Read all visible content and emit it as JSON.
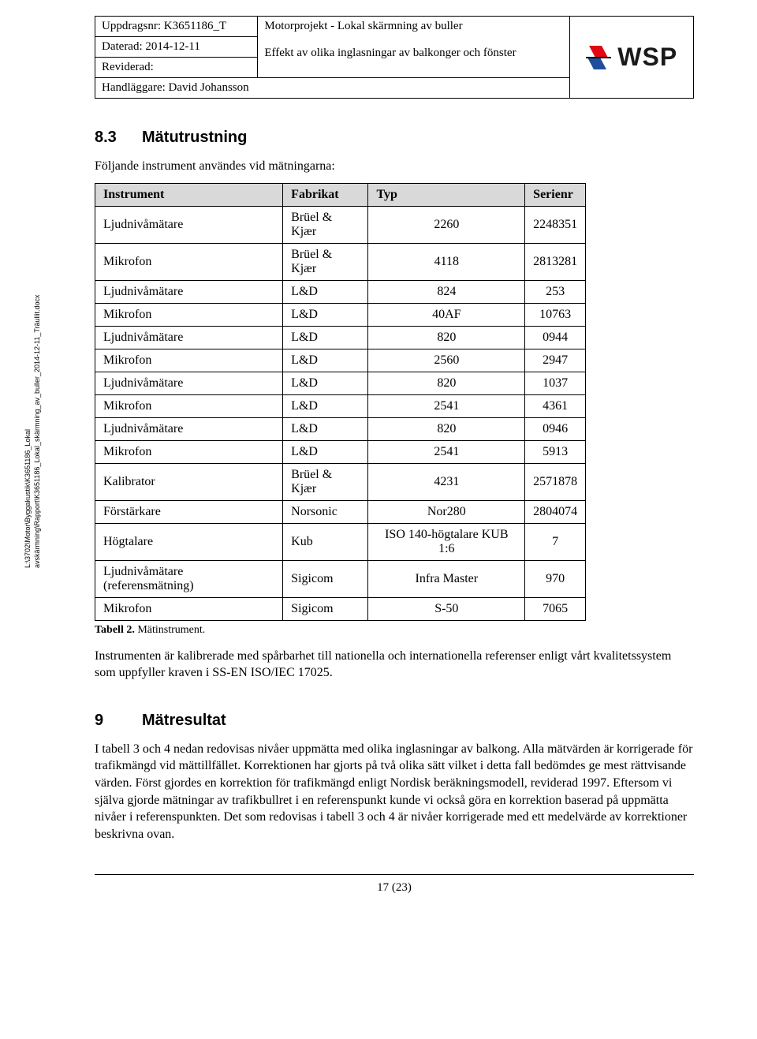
{
  "header": {
    "uppdragsnr_label": "Uppdragsnr: K3651186_T",
    "daterad_label": "Daterad: 2014-12-11",
    "reviderad_label": "Reviderad:",
    "handlaggare_label": "Handläggare: David Johansson",
    "title_line1": "Motorprojekt - Lokal skärmning av buller",
    "title_line2": "Effekt av olika inglasningar av balkonger och fönster",
    "logo_text": "WSP"
  },
  "section83": {
    "num": "8.3",
    "title": "Mätutrustning",
    "intro": "Följande instrument användes vid mätningarna:"
  },
  "table": {
    "headers": [
      "Instrument",
      "Fabrikat",
      "Typ",
      "Serienr"
    ],
    "rows": [
      [
        "Ljudnivåmätare",
        "Brüel & Kjær",
        "2260",
        "2248351"
      ],
      [
        "Mikrofon",
        "Brüel & Kjær",
        "4118",
        "2813281"
      ],
      [
        "Ljudnivåmätare",
        "L&D",
        "824",
        "253"
      ],
      [
        "Mikrofon",
        "L&D",
        "40AF",
        "10763"
      ],
      [
        "Ljudnivåmätare",
        "L&D",
        "820",
        "0944"
      ],
      [
        "Mikrofon",
        "L&D",
        "2560",
        "2947"
      ],
      [
        "Ljudnivåmätare",
        "L&D",
        "820",
        "1037"
      ],
      [
        "Mikrofon",
        "L&D",
        "2541",
        "4361"
      ],
      [
        "Ljudnivåmätare",
        "L&D",
        "820",
        "0946"
      ],
      [
        "Mikrofon",
        "L&D",
        "2541",
        "5913"
      ],
      [
        "Kalibrator",
        "Brüel & Kjær",
        "4231",
        "2571878"
      ],
      [
        "Förstärkare",
        "Norsonic",
        "Nor280",
        "2804074"
      ],
      [
        "Högtalare",
        "Kub",
        "ISO 140-högtalare KUB 1:6",
        "7"
      ],
      [
        "Ljudnivåmätare (referensmätning)",
        "Sigicom",
        "Infra Master",
        "970"
      ],
      [
        "Mikrofon",
        "Sigicom",
        "S-50",
        "7065"
      ]
    ],
    "caption_label": "Tabell 2.",
    "caption_text": "Mätinstrument."
  },
  "para_after_table": "Instrumenten är kalibrerade med spårbarhet till nationella och internationella referenser enligt vårt kvalitetssystem som uppfyller kraven i SS-EN ISO/IEC 17025.",
  "section9": {
    "num": "9",
    "title": "Mätresultat",
    "body": "I tabell 3 och 4 nedan redovisas nivåer uppmätta med olika inglasningar av balkong. Alla mätvärden är korrigerade för trafikmängd vid mättillfället. Korrektionen har gjorts på två olika sätt vilket i detta fall bedömdes ge mest rättvisande värden. Först gjordes en korrektion för trafikmängd enligt Nordisk beräkningsmodell, reviderad 1997. Eftersom vi själva gjorde mätningar av trafikbullret i en referenspunkt kunde vi också göra en korrektion baserad på uppmätta nivåer i referenspunkten. Det som redovisas i tabell 3 och 4 är nivåer korrigerade med ett medelvärde av korrektioner beskrivna ovan."
  },
  "sidetext": {
    "line1": "L:\\3702\\Motor\\Byggakustik\\K3651186_Lokal",
    "line2": "avskärmning\\Rapport\\K3651186_Lokal_skärmning_av_buller_2014-12-11_Träullit.docx"
  },
  "page_number": "17 (23)",
  "colors": {
    "table_header_bg": "#d9d9d9",
    "border": "#000000",
    "logo_red": "#e30613",
    "logo_blue": "#1f4e9c"
  }
}
